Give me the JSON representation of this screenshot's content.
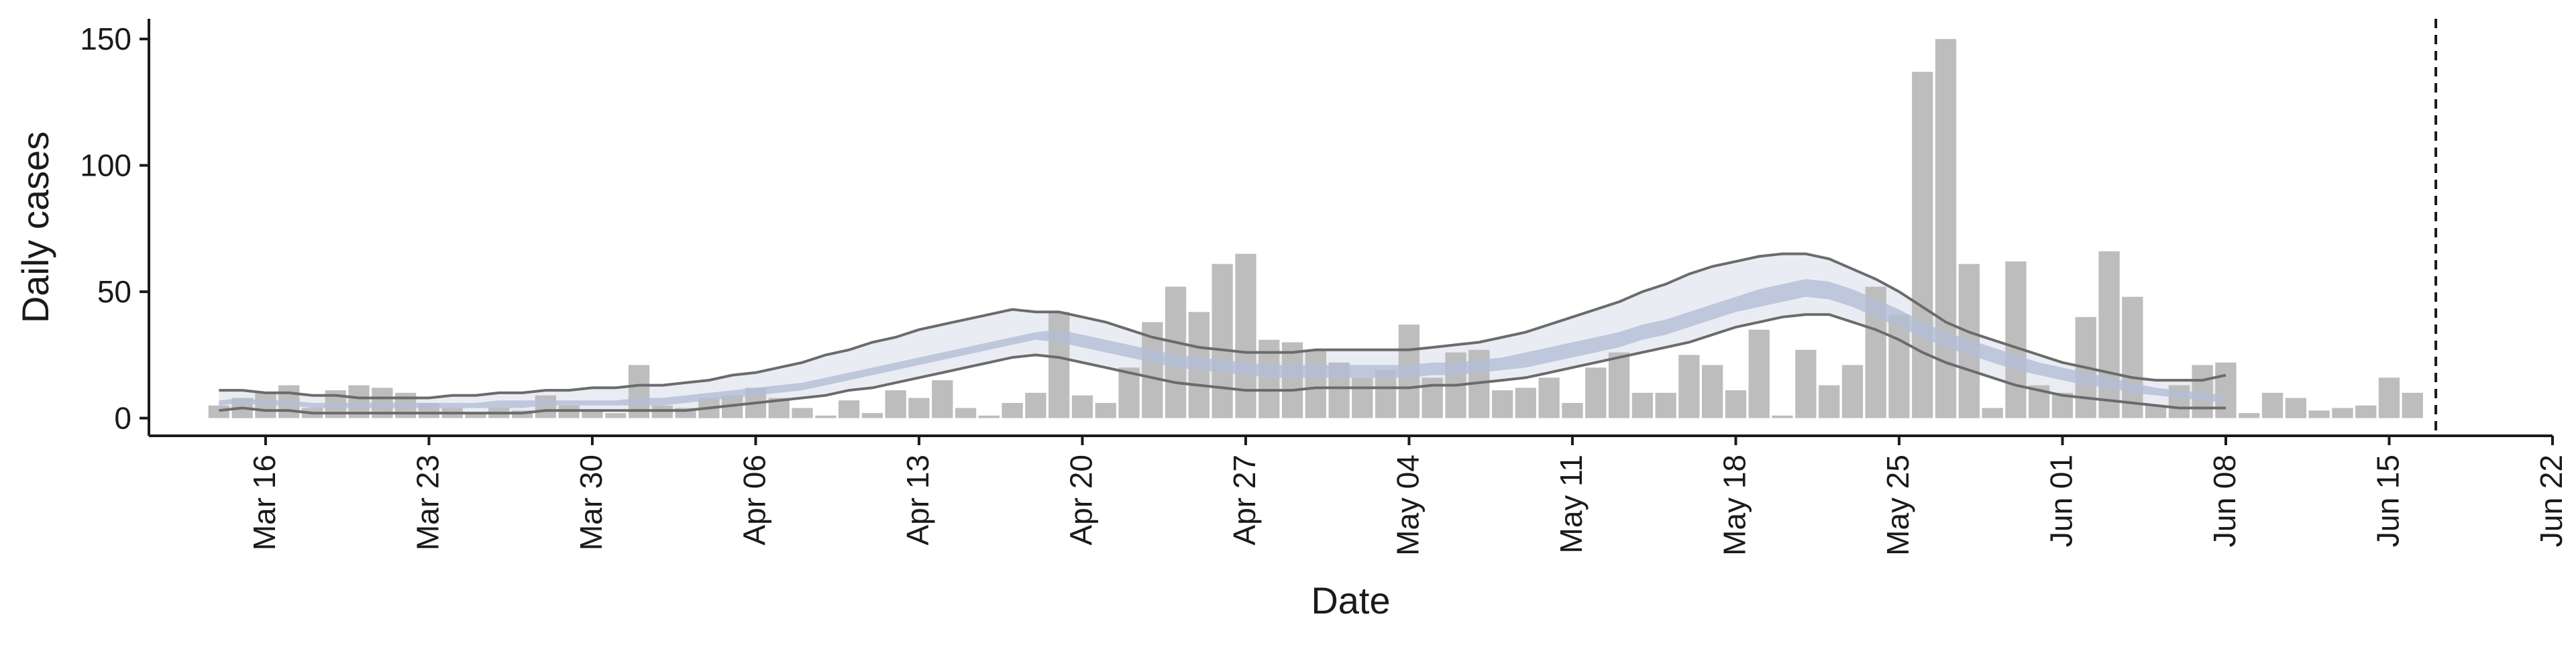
{
  "chart_data": {
    "type": "bar",
    "xlabel": "Date",
    "ylabel": "Daily cases",
    "ylim": [
      -7,
      158
    ],
    "xlim": [
      "2020-03-11",
      "2020-06-22"
    ],
    "y_ticks": [
      0,
      50,
      100,
      150
    ],
    "x_ticks": [
      {
        "date": "2020-03-16",
        "label": "Mar 16"
      },
      {
        "date": "2020-03-23",
        "label": "Mar 23"
      },
      {
        "date": "2020-03-30",
        "label": "Mar 30"
      },
      {
        "date": "2020-04-06",
        "label": "Apr 06"
      },
      {
        "date": "2020-04-13",
        "label": "Apr 13"
      },
      {
        "date": "2020-04-20",
        "label": "Apr 20"
      },
      {
        "date": "2020-04-27",
        "label": "Apr 27"
      },
      {
        "date": "2020-05-04",
        "label": "May 04"
      },
      {
        "date": "2020-05-11",
        "label": "May 11"
      },
      {
        "date": "2020-05-18",
        "label": "May 18"
      },
      {
        "date": "2020-05-25",
        "label": "May 25"
      },
      {
        "date": "2020-06-01",
        "label": "Jun 01"
      },
      {
        "date": "2020-06-08",
        "label": "Jun 08"
      },
      {
        "date": "2020-06-15",
        "label": "Jun 15"
      },
      {
        "date": "2020-06-22",
        "label": "Jun 22"
      }
    ],
    "grid": false,
    "vline_date": "2020-06-17",
    "colors": {
      "bars": "#bdbdbd",
      "outer_band": "#e6e9f2",
      "inner_band": "#b3bed6",
      "interval_lines": "#6b6b6b",
      "vline": "#1a1a1a",
      "axis": "#1a1a1a"
    },
    "daily_cases": {
      "start_date": "2020-03-14",
      "values": [
        5,
        8,
        10,
        13,
        4,
        11,
        13,
        12,
        10,
        6,
        4,
        2,
        4,
        3,
        9,
        5,
        3,
        2,
        21,
        5,
        4,
        8,
        9,
        12,
        8,
        4,
        1,
        7,
        2,
        11,
        8,
        15,
        4,
        1,
        6,
        10,
        42,
        9,
        6,
        20,
        38,
        52,
        42,
        61,
        65,
        31,
        30,
        27,
        22,
        16,
        19,
        37,
        16,
        26,
        27,
        11,
        12,
        16,
        6,
        20,
        26,
        10,
        10,
        25,
        21,
        11,
        35,
        1,
        27,
        13,
        21,
        52,
        41,
        137,
        150,
        61,
        4,
        62,
        13,
        10,
        40,
        66,
        48,
        5,
        13,
        21,
        22,
        2,
        10,
        8,
        3,
        4,
        5,
        16,
        10
      ]
    },
    "estimate_band": {
      "start_date": "2020-03-14",
      "lower_outer": [
        3,
        4,
        3,
        3,
        2,
        2,
        2,
        2,
        2,
        2,
        2,
        2,
        2,
        2,
        3,
        3,
        3,
        3,
        3,
        3,
        3,
        4,
        5,
        6,
        7,
        8,
        9,
        11,
        12,
        14,
        16,
        18,
        20,
        22,
        24,
        25,
        24,
        22,
        20,
        18,
        16,
        14,
        13,
        12,
        11,
        11,
        11,
        12,
        12,
        12,
        12,
        12,
        13,
        13,
        14,
        15,
        16,
        18,
        20,
        22,
        24,
        26,
        28,
        30,
        33,
        36,
        38,
        40,
        41,
        41,
        38,
        35,
        31,
        26,
        22,
        19,
        16,
        13,
        11,
        9,
        8,
        7,
        6,
        5,
        4,
        4,
        4
      ],
      "lower_inner": [
        5,
        6,
        5,
        5,
        4,
        4,
        4,
        4,
        4,
        4,
        4,
        4,
        4,
        4,
        5,
        5,
        5,
        5,
        5,
        5,
        6,
        7,
        8,
        9,
        10,
        11,
        13,
        15,
        17,
        19,
        21,
        23,
        25,
        27,
        29,
        31,
        30,
        28,
        26,
        24,
        22,
        20,
        19,
        18,
        17,
        16,
        16,
        16,
        16,
        16,
        16,
        16,
        17,
        17,
        18,
        19,
        20,
        22,
        24,
        26,
        28,
        31,
        33,
        36,
        39,
        42,
        44,
        46,
        48,
        47,
        44,
        40,
        36,
        32,
        28,
        25,
        22,
        19,
        17,
        15,
        13,
        12,
        10,
        9,
        8,
        7,
        6
      ],
      "upper_inner": [
        7,
        8,
        7,
        7,
        6,
        6,
        6,
        6,
        6,
        6,
        6,
        6,
        7,
        7,
        7,
        7,
        7,
        7,
        8,
        8,
        9,
        10,
        11,
        12,
        13,
        14,
        16,
        18,
        20,
        22,
        24,
        26,
        28,
        30,
        32,
        34,
        35,
        33,
        31,
        29,
        27,
        25,
        24,
        23,
        22,
        21,
        21,
        21,
        21,
        21,
        21,
        21,
        22,
        22,
        23,
        24,
        26,
        28,
        30,
        32,
        34,
        37,
        39,
        42,
        45,
        48,
        51,
        53,
        55,
        54,
        51,
        47,
        43,
        38,
        34,
        31,
        28,
        25,
        22,
        20,
        18,
        16,
        14,
        12,
        11,
        10,
        9
      ],
      "upper_outer": [
        11,
        11,
        10,
        10,
        9,
        9,
        8,
        8,
        8,
        8,
        9,
        9,
        10,
        10,
        11,
        11,
        12,
        12,
        13,
        13,
        14,
        15,
        17,
        18,
        20,
        22,
        25,
        27,
        30,
        32,
        35,
        37,
        39,
        41,
        43,
        42,
        42,
        40,
        38,
        35,
        32,
        30,
        28,
        27,
        26,
        26,
        26,
        27,
        27,
        27,
        27,
        27,
        28,
        29,
        30,
        32,
        34,
        37,
        40,
        43,
        46,
        50,
        53,
        57,
        60,
        62,
        64,
        65,
        65,
        63,
        59,
        55,
        50,
        44,
        38,
        34,
        31,
        28,
        25,
        22,
        20,
        18,
        16,
        15,
        15,
        15,
        17
      ]
    }
  }
}
